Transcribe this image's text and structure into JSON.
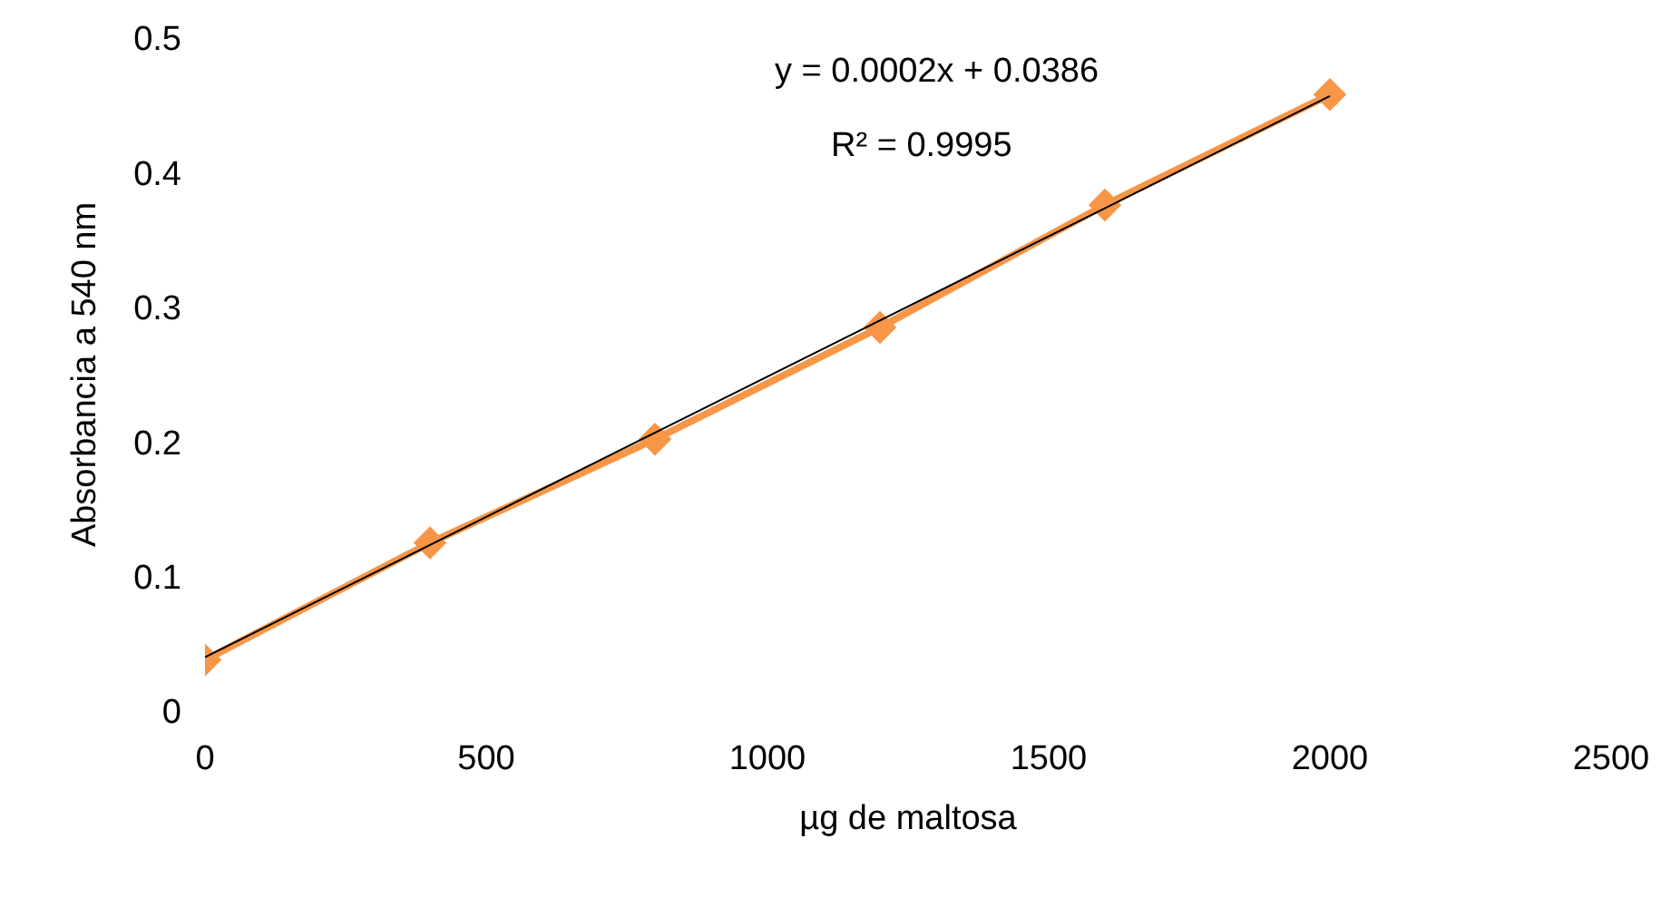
{
  "chart_data": {
    "type": "line",
    "xlabel": "µg de maltosa",
    "ylabel": "Absorbancia a 540 nm",
    "xlim": [
      0,
      2500
    ],
    "xticks": [
      0,
      500,
      1000,
      1500,
      2000,
      2500
    ],
    "ylim": [
      0,
      0.5
    ],
    "yticks": [
      0,
      0.1,
      0.2,
      0.3,
      0.4,
      0.5
    ],
    "grid": false,
    "marker": "diamond",
    "series": [
      {
        "color": "#f79646",
        "x": [
          0,
          400,
          800,
          1200,
          1600,
          2000
        ],
        "values": [
          0.038,
          0.125,
          0.202,
          0.285,
          0.376,
          0.458
        ]
      },
      {
        "color": "#000000",
        "x": [
          0,
          2000
        ],
        "values": [
          0.04,
          0.457
        ],
        "marker": "none"
      }
    ],
    "annotations": [
      "y = 0.0002x + 0.0386",
      "R² = 0.9995"
    ]
  }
}
